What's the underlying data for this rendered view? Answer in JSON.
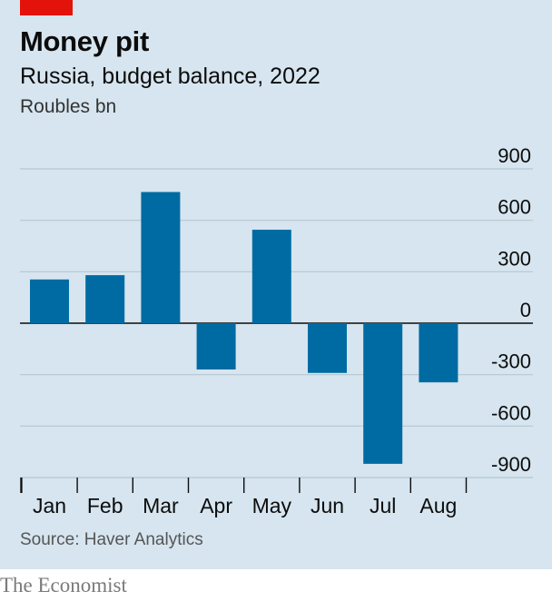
{
  "header": {
    "title": "Money pit",
    "subtitle": "Russia, budget balance, 2022",
    "unit": "Roubles bn"
  },
  "footer": {
    "source": "Source: Haver Analytics",
    "brand": "The Economist"
  },
  "colors": {
    "background": "#d6e5ef",
    "bar": "#006ba2",
    "accent": "#e3120b",
    "grid": "#b7c6cf"
  },
  "chart_data": {
    "type": "bar",
    "title": "Money pit",
    "subtitle": "Russia, budget balance, 2022",
    "ylabel": "Roubles bn",
    "categories": [
      "Jan",
      "Feb",
      "Mar",
      "Apr",
      "May",
      "Jun",
      "Jul",
      "Aug"
    ],
    "values": [
      255,
      280,
      765,
      -270,
      545,
      -290,
      -820,
      -345
    ],
    "ylim": [
      -900,
      900
    ],
    "yticks": [
      900,
      600,
      300,
      0,
      -300,
      -600,
      -900
    ],
    "ytick_labels": [
      "900",
      "600",
      "300",
      "0",
      "-300",
      "-600",
      "-900"
    ],
    "grid": true,
    "yaxis_position": "right"
  }
}
